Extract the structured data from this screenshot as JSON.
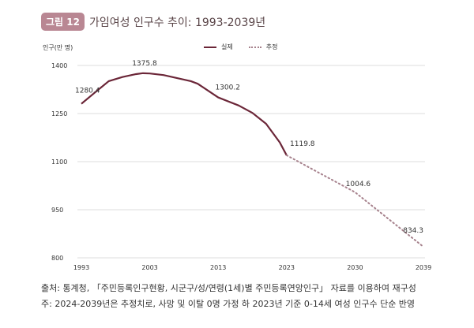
{
  "header": {
    "badge": "그림 12",
    "title": "가임여성 인구수 추이: 1993-2039년"
  },
  "chart_data": {
    "type": "line",
    "title": "가임여성 인구수 추이: 1993-2039년",
    "ylabel": "인구(만 명)",
    "xlabel": "",
    "ylim": [
      800,
      1400
    ],
    "yticks": [
      800,
      950,
      1100,
      1250,
      1400
    ],
    "xticks": [
      1993,
      2003,
      2013,
      2023,
      2030,
      2039
    ],
    "grid": true,
    "legend_position": "top-center",
    "series": [
      {
        "name": "실제",
        "style": "solid",
        "color": "#6b2638",
        "x": [
          1993,
          1995,
          1997,
          1999,
          2001,
          2002,
          2003,
          2005,
          2009,
          2010,
          2013,
          2016,
          2018,
          2020,
          2022,
          2023
        ],
        "y": [
          1280.4,
          1316,
          1351,
          1364,
          1373,
          1375.8,
          1375,
          1370,
          1351,
          1343,
          1300.2,
          1275,
          1252,
          1218,
          1160,
          1119.8
        ]
      },
      {
        "name": "추정",
        "style": "dotted",
        "color": "#a6818c",
        "x": [
          2023,
          2030,
          2039
        ],
        "y": [
          1119.8,
          1004.6,
          834.3
        ]
      }
    ],
    "annotations": [
      {
        "x": 1993,
        "label": "1280.4"
      },
      {
        "x": 2002,
        "label": "1375.8"
      },
      {
        "x": 2013,
        "label": "1300.2"
      },
      {
        "x": 2023,
        "label": "1119.8"
      },
      {
        "x": 2030,
        "label": "1004.6"
      },
      {
        "x": 2039,
        "label": "834.3"
      }
    ]
  },
  "footer": {
    "source": "출처: 통계청, 「주민등록인구현황, 시군구/성/연령(1세)별 주민등록연앙인구」 자료를 이용하여 재구성",
    "note": "주: 2024-2039년은 추정치로, 사망 및 이탈 0명 가정 하 2023년 기준 0-14세 여성 인구수 단순 반영"
  }
}
